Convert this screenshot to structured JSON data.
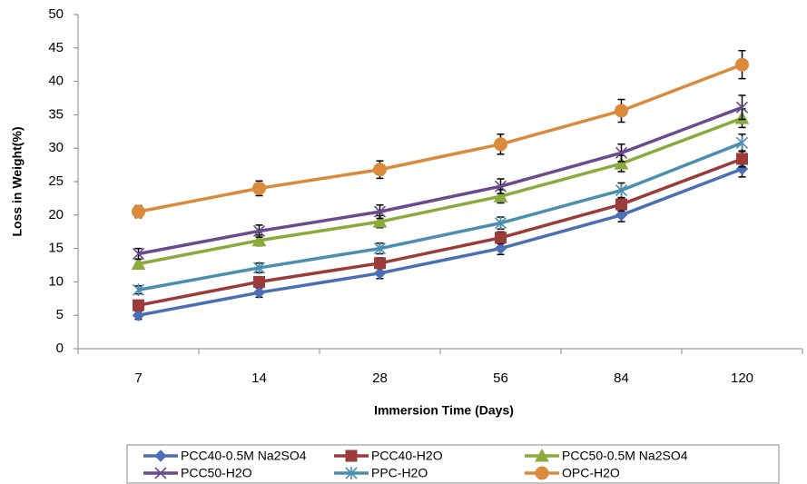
{
  "chart_data": {
    "type": "line",
    "x_label": "Immersion Time (Days)",
    "y_label": "Loss in Weight(%)",
    "categories": [
      "7",
      "14",
      "28",
      "56",
      "84",
      "120"
    ],
    "ylim": [
      0,
      50
    ],
    "yticks": [
      0,
      5,
      10,
      15,
      20,
      25,
      30,
      35,
      40,
      45,
      50
    ],
    "grid": false,
    "legend": "bottom",
    "series": [
      {
        "name": "PCC40-0.5M Na2SO4",
        "color": "#4a6fb5",
        "marker": "diamond",
        "values": [
          5,
          8.4,
          11.3,
          15,
          20,
          26.9
        ],
        "errors": [
          0.6,
          0.7,
          0.8,
          0.9,
          1.0,
          1.2
        ]
      },
      {
        "name": "PCC40-H2O",
        "color": "#9b3b3a",
        "marker": "square",
        "values": [
          6.5,
          10,
          12.8,
          16.6,
          21.6,
          28.4
        ],
        "errors": [
          0.6,
          0.7,
          0.8,
          0.9,
          1.0,
          1.2
        ]
      },
      {
        "name": "PCC50-0.5M Na2SO4",
        "color": "#8aaa3c",
        "marker": "triangle",
        "values": [
          12.7,
          16.2,
          19,
          22.8,
          27.7,
          34.5
        ],
        "errors": [
          0.7,
          0.8,
          0.9,
          1.0,
          1.2,
          1.4
        ]
      },
      {
        "name": "PCC50-H2O",
        "color": "#6b4a8e",
        "marker": "x",
        "values": [
          14.2,
          17.6,
          20.5,
          24.3,
          29.3,
          36.1
        ],
        "errors": [
          0.8,
          0.9,
          1.0,
          1.1,
          1.3,
          1.8
        ]
      },
      {
        "name": "PPC-H2O",
        "color": "#4a8fb0",
        "marker": "star",
        "values": [
          8.8,
          12.1,
          15,
          18.8,
          23.7,
          30.8
        ],
        "errors": [
          0.6,
          0.7,
          0.8,
          0.9,
          1.1,
          1.3
        ]
      },
      {
        "name": "OPC-H2O",
        "color": "#d98a3a",
        "marker": "circle",
        "values": [
          20.5,
          24,
          26.8,
          30.6,
          35.6,
          42.5
        ],
        "errors": [
          0.9,
          1.1,
          1.3,
          1.5,
          1.7,
          2.1
        ]
      }
    ]
  }
}
